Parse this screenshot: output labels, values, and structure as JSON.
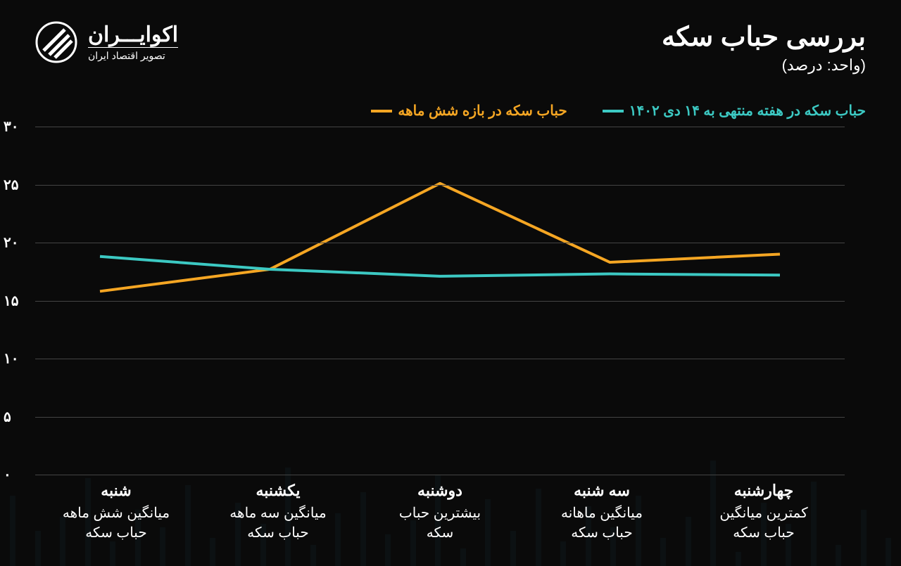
{
  "header": {
    "title": "بررسی حباب سکه",
    "subtitle": "(واحد: درصد)"
  },
  "logo": {
    "main": "اکوایـــران",
    "sub": "تصویر اقتصاد ایران"
  },
  "legend": {
    "series1": {
      "label": "حباب سکه در هفته منتهی به ۱۴ دی ۱۴۰۲",
      "color": "#3cc9c3"
    },
    "series2": {
      "label": "حباب سکه در بازه شش ماهه",
      "color": "#f5a623"
    }
  },
  "chart": {
    "type": "line",
    "ylim": [
      0,
      30
    ],
    "ytick_step": 5,
    "yticks": [
      "۰",
      "۵",
      "۱۰",
      "۱۵",
      "۲۰",
      "۲۵",
      "۳۰"
    ],
    "grid_color": "#444444",
    "background_color": "#0a0a0a",
    "line_width": 4,
    "x_categories": [
      {
        "day": "شنبه",
        "desc1": "میانگین شش ماهه",
        "desc2": "حباب سکه"
      },
      {
        "day": "یکشنبه",
        "desc1": "میانگین سه ماهه",
        "desc2": "حباب سکه"
      },
      {
        "day": "دوشنبه",
        "desc1": "بیشترین حباب",
        "desc2": "سکه"
      },
      {
        "day": "سه شنبه",
        "desc1": "میانگین ماهانه",
        "desc2": "حباب سکه"
      },
      {
        "day": "چهارشنبه",
        "desc1": "کمترین میانگین",
        "desc2": "حباب سکه"
      }
    ],
    "series1_values": [
      17.2,
      17.3,
      17.1,
      17.7,
      18.8
    ],
    "series2_values": [
      19.0,
      18.3,
      25.1,
      17.7,
      15.8
    ],
    "series1_color": "#3cc9c3",
    "series2_color": "#f5a623"
  }
}
